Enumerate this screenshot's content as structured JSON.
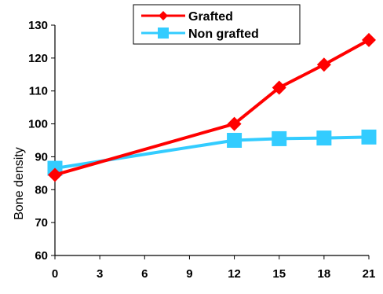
{
  "chart_data": {
    "type": "line",
    "title": "",
    "xlabel": "",
    "ylabel": "Bone density",
    "xlim": [
      0,
      21
    ],
    "ylim": [
      60,
      130
    ],
    "xticks": [
      0,
      3,
      6,
      9,
      12,
      15,
      18,
      21
    ],
    "yticks": [
      60,
      70,
      80,
      90,
      100,
      110,
      120,
      130
    ],
    "grid": false,
    "legend_position": "top-center",
    "series": [
      {
        "name": "Grafted",
        "color": "#ff0000",
        "marker": "diamond",
        "x": [
          0,
          12,
          15,
          18,
          21
        ],
        "y": [
          84.5,
          100,
          111,
          118,
          125.5
        ]
      },
      {
        "name": "Non grafted",
        "color": "#33ccff",
        "marker": "square",
        "x": [
          0,
          12,
          15,
          18,
          21
        ],
        "y": [
          86.5,
          95,
          95.5,
          95.7,
          96
        ]
      }
    ]
  }
}
